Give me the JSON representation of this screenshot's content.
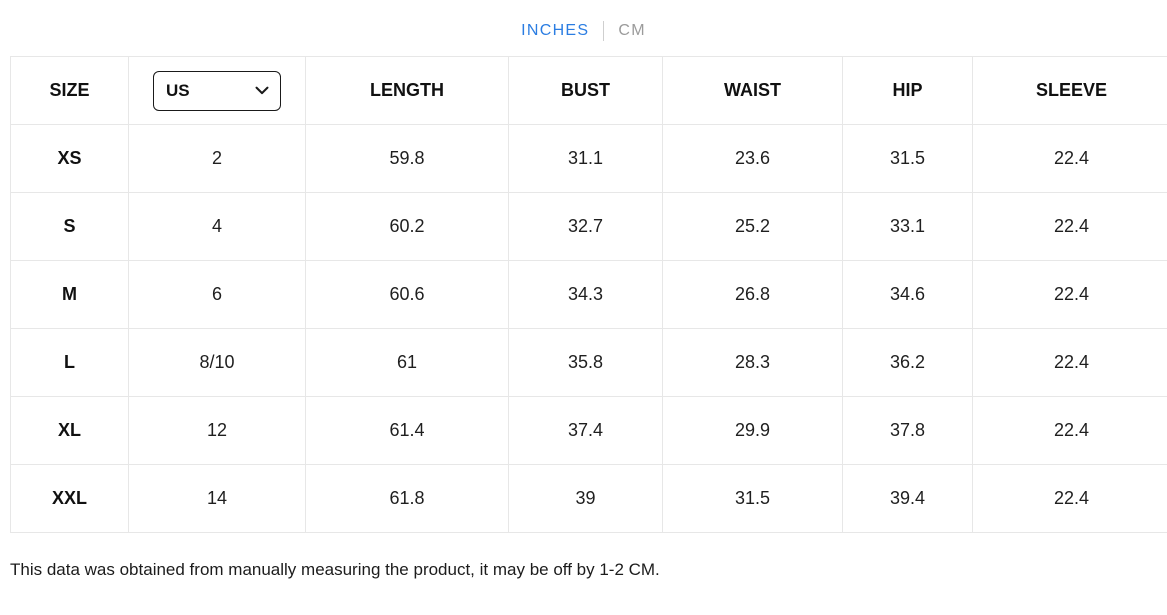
{
  "unit_toggle": {
    "options": [
      {
        "label": "INCHES",
        "active": true
      },
      {
        "label": "CM",
        "active": false
      }
    ],
    "active_color": "#2b7de2",
    "inactive_color": "#9b9b9b"
  },
  "table": {
    "headers": [
      "SIZE",
      "US",
      "LENGTH",
      "BUST",
      "WAIST",
      "HIP",
      "SLEEVE"
    ],
    "size_dropdown": {
      "selected": "US"
    },
    "rows": [
      {
        "size": "XS",
        "values": [
          "2",
          "59.8",
          "31.1",
          "23.6",
          "31.5",
          "22.4"
        ]
      },
      {
        "size": "S",
        "values": [
          "4",
          "60.2",
          "32.7",
          "25.2",
          "33.1",
          "22.4"
        ]
      },
      {
        "size": "M",
        "values": [
          "6",
          "60.6",
          "34.3",
          "26.8",
          "34.6",
          "22.4"
        ]
      },
      {
        "size": "L",
        "values": [
          "8/10",
          "61",
          "35.8",
          "28.3",
          "36.2",
          "22.4"
        ]
      },
      {
        "size": "XL",
        "values": [
          "12",
          "61.4",
          "37.4",
          "29.9",
          "37.8",
          "22.4"
        ]
      },
      {
        "size": "XXL",
        "values": [
          "14",
          "61.8",
          "39",
          "31.5",
          "39.4",
          "22.4"
        ]
      }
    ]
  },
  "footer": {
    "note": "This data was obtained from manually measuring the product, it may be off by 1-2 CM."
  }
}
